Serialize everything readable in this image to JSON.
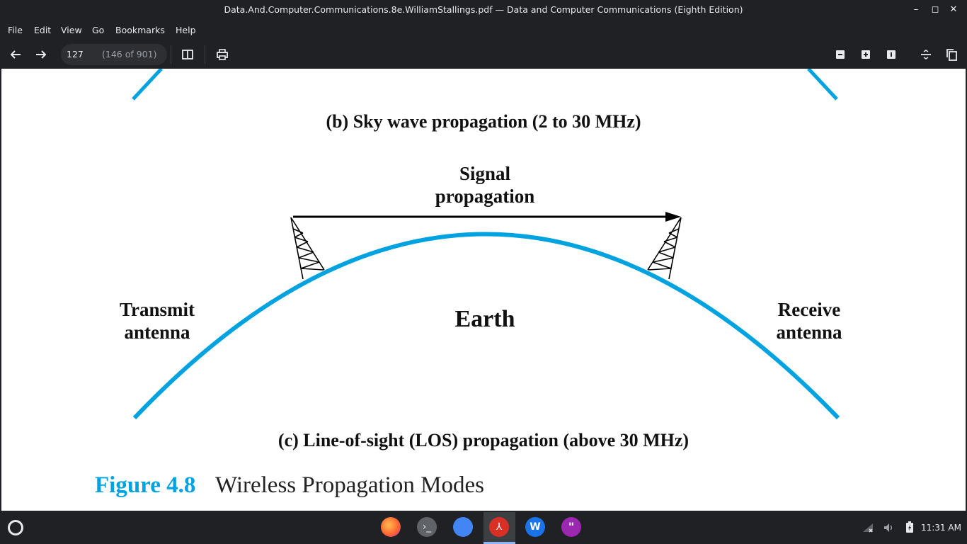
{
  "window": {
    "title": "Data.And.Computer.Communications.8e.WilliamStallings.pdf — Data and Computer Communications (Eighth Edition)",
    "controls": {
      "minimize": "–",
      "maximize": "◻",
      "close": "✕"
    }
  },
  "menu": [
    "File",
    "Edit",
    "View",
    "Go",
    "Bookmarks",
    "Help"
  ],
  "toolbar": {
    "page_input": "127",
    "page_count": "(146 of 901)",
    "icons": [
      "back-arrow-icon",
      "forward-arrow-icon",
      "sidebar-icon",
      "print-icon",
      "zoom-out-icon",
      "zoom-in-icon",
      "original-size-icon",
      "fit-width-icon",
      "copy-icon"
    ]
  },
  "document": {
    "caption_b": "(b) Sky wave propagation (2 to 30 MHz)",
    "signal_line1": "Signal",
    "signal_line2": "propagation",
    "transmit_line1": "Transmit",
    "transmit_line2": "antenna",
    "earth": "Earth",
    "receive_line1": "Receive",
    "receive_line2": "antenna",
    "caption_c": "(c) Line-of-sight (LOS) propagation (above 30 MHz)",
    "figure_number": "Figure 4.8",
    "figure_title": "Wireless Propagation Modes",
    "colors": {
      "earth_curve": "#00a3e0",
      "figure_number": "#00a3e0"
    }
  },
  "taskbar": {
    "apps": [
      "firefox-icon",
      "terminal-icon",
      "files-icon",
      "pdf-reader-icon",
      "wps-icon",
      "quote-app-icon"
    ],
    "tray": [
      "network-icon",
      "volume-icon",
      "battery-icon"
    ],
    "clock": "11:31 AM"
  }
}
